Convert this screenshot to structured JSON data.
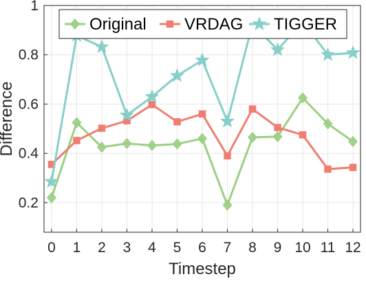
{
  "chart_data": {
    "type": "line",
    "xlabel": "Timestep",
    "ylabel": "Difference",
    "x": [
      0,
      1,
      2,
      3,
      4,
      5,
      6,
      7,
      8,
      9,
      10,
      11,
      12
    ],
    "xlim": [
      -0.3,
      12.3
    ],
    "ylim": [
      0.2,
      1.0
    ],
    "ylim_plot": [
      0.08,
      1.0
    ],
    "xticks": [
      0,
      1,
      2,
      3,
      4,
      5,
      6,
      7,
      8,
      9,
      10,
      11,
      12
    ],
    "yticks": [
      0.2,
      0.4,
      0.6,
      0.8,
      1.0
    ],
    "ytick_labels": [
      "0.2",
      "0.4",
      "0.6",
      "0.8",
      "1"
    ],
    "grid": true,
    "legend_position": "top",
    "series": [
      {
        "name": "Original",
        "color": "#9ccf84",
        "marker": "diamond",
        "values": [
          0.22,
          0.525,
          0.425,
          0.44,
          0.432,
          0.438,
          0.46,
          0.19,
          0.465,
          0.468,
          0.625,
          0.52,
          0.448
        ]
      },
      {
        "name": "VRDAG",
        "color": "#f07e70",
        "marker": "square",
        "values": [
          0.355,
          0.452,
          0.502,
          0.532,
          0.598,
          0.528,
          0.56,
          0.39,
          0.58,
          0.505,
          0.475,
          0.336,
          0.343
        ]
      },
      {
        "name": "TIGGER",
        "color": "#87cfc9",
        "marker": "star",
        "values": [
          0.285,
          0.878,
          0.832,
          0.555,
          0.63,
          0.715,
          0.778,
          0.53,
          0.925,
          0.82,
          0.935,
          0.8,
          0.808
        ]
      }
    ]
  }
}
